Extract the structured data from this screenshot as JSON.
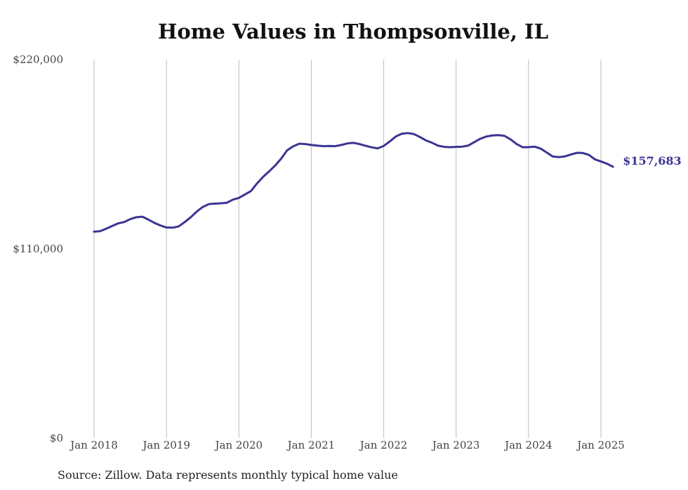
{
  "chart_data": {
    "type": "line",
    "title": "Home Values in Thompsonville, IL",
    "xlabel": "",
    "ylabel": "",
    "x_ticks": [
      "Jan 2018",
      "Jan 2019",
      "Jan 2020",
      "Jan 2021",
      "Jan 2022",
      "Jan 2023",
      "Jan 2024",
      "Jan 2025"
    ],
    "y_ticks": [
      "$0",
      "$110,000",
      "$220,000"
    ],
    "y_tick_values": [
      0,
      110000,
      220000
    ],
    "ylim": [
      0,
      220000
    ],
    "xlim": [
      "2018-01",
      "2025-03"
    ],
    "grid": "vertical",
    "line_color": "#3b3494",
    "end_label": "$157,683",
    "series": [
      {
        "x": [
          "2018-01",
          "2018-02",
          "2018-03",
          "2018-04",
          "2018-05",
          "2018-06",
          "2018-07",
          "2018-08",
          "2018-09",
          "2018-10",
          "2018-11",
          "2018-12",
          "2019-01",
          "2019-02",
          "2019-03",
          "2019-04",
          "2019-05",
          "2019-06",
          "2019-07",
          "2019-08",
          "2019-09",
          "2019-10",
          "2019-11",
          "2019-12",
          "2020-01",
          "2020-02",
          "2020-03",
          "2020-04",
          "2020-05",
          "2020-06",
          "2020-07",
          "2020-08",
          "2020-09",
          "2020-10",
          "2020-11",
          "2020-12",
          "2021-01",
          "2021-02",
          "2021-03",
          "2021-04",
          "2021-05",
          "2021-06",
          "2021-07",
          "2021-08",
          "2021-09",
          "2021-10",
          "2021-11",
          "2021-12",
          "2022-01",
          "2022-02",
          "2022-03",
          "2022-04",
          "2022-05",
          "2022-06",
          "2022-07",
          "2022-08",
          "2022-09",
          "2022-10",
          "2022-11",
          "2022-12",
          "2023-01",
          "2023-02",
          "2023-03",
          "2023-04",
          "2023-05",
          "2023-06",
          "2023-07",
          "2023-08",
          "2023-09",
          "2023-10",
          "2023-11",
          "2023-12",
          "2024-01",
          "2024-02",
          "2024-03",
          "2024-04",
          "2024-05",
          "2024-06",
          "2024-07",
          "2024-08",
          "2024-09",
          "2024-10",
          "2024-11",
          "2024-12",
          "2025-01",
          "2025-02",
          "2025-03"
        ],
        "values": [
          120000,
          120300,
          121700,
          123300,
          124800,
          125600,
          127300,
          128400,
          128700,
          127000,
          125100,
          123600,
          122400,
          122300,
          123000,
          125500,
          128300,
          131600,
          134300,
          136000,
          136300,
          136500,
          136800,
          138600,
          139600,
          141600,
          143600,
          148000,
          151800,
          155000,
          158400,
          162400,
          167300,
          169600,
          171100,
          170900,
          170400,
          170000,
          169700,
          169800,
          169700,
          170400,
          171300,
          171600,
          170900,
          169900,
          169000,
          168400,
          169800,
          172400,
          175300,
          176900,
          177300,
          176700,
          175000,
          173000,
          171700,
          170000,
          169300,
          169100,
          169300,
          169400,
          170000,
          172000,
          174000,
          175300,
          175900,
          176100,
          175700,
          173700,
          171000,
          169100,
          169100,
          169400,
          168300,
          166000,
          163700,
          163300,
          163700,
          164800,
          165800,
          165700,
          164600,
          162000,
          160800,
          159500,
          157683
        ]
      }
    ]
  },
  "source": "Source: Zillow. Data represents monthly typical home value"
}
